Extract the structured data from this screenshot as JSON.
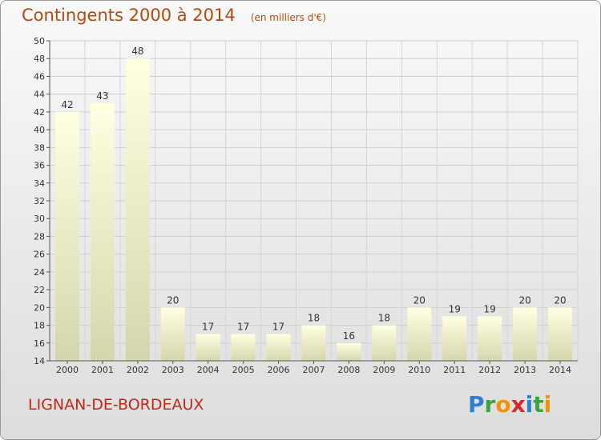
{
  "header": {
    "title": "Contingents 2000 à 2014",
    "subtitle": "(en milliers d'€)"
  },
  "footer": {
    "commune": "LIGNAN-DE-BORDEAUX",
    "logo_text": "Proxiti"
  },
  "colors": {
    "title": "#b34a10",
    "commune": "#c0281a",
    "bar_top": "#ffffe0",
    "bar_bottom": "#d8d8b0"
  },
  "chart_data": {
    "type": "bar",
    "title": "Contingents 2000 à 2014",
    "subtitle": "(en milliers d'€)",
    "categories": [
      "2000",
      "2001",
      "2002",
      "2003",
      "2004",
      "2005",
      "2006",
      "2007",
      "2008",
      "2009",
      "2010",
      "2011",
      "2012",
      "2013",
      "2014"
    ],
    "values": [
      42,
      43,
      48,
      20,
      17,
      17,
      17,
      18,
      16,
      18,
      20,
      19,
      19,
      20,
      20
    ],
    "ylim": [
      14,
      50
    ],
    "yticks": [
      14,
      16,
      18,
      20,
      22,
      24,
      26,
      28,
      30,
      32,
      34,
      36,
      38,
      40,
      42,
      44,
      46,
      48,
      50
    ],
    "grid": true,
    "data_labels": true
  }
}
